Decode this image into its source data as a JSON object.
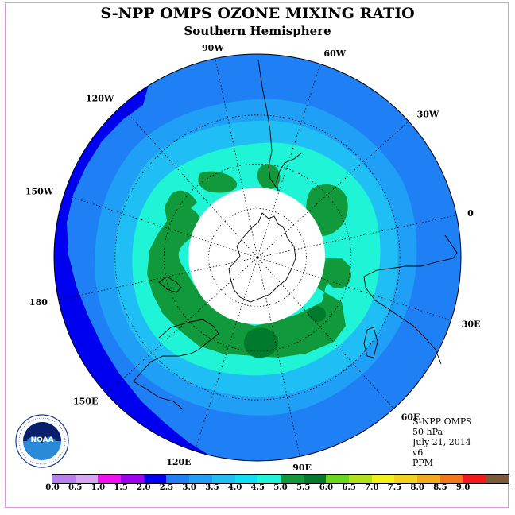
{
  "title": "S-NPP OMPS OZONE MIXING RATIO",
  "subtitle": "Southern Hemisphere",
  "longitude_labels": [
    "90W",
    "60W",
    "30W",
    "0",
    "30E",
    "60E",
    "90E",
    "120E",
    "150E",
    "180",
    "150W",
    "120W"
  ],
  "info": {
    "instrument": "S-NPP OMPS",
    "level": "50 hPa",
    "date": "July 21, 2014",
    "version": "v6",
    "units": "PPM"
  },
  "logo": {
    "text": "NOAA",
    "icon": "noaa-logo-icon"
  },
  "colorbar": {
    "colors": [
      "#b77fef",
      "#d7a6f2",
      "#f20ff2",
      "#a000f0",
      "#0000f0",
      "#1f7ff5",
      "#1f9ff5",
      "#1fbff5",
      "#0fdff5",
      "#1ff5d6",
      "#119a3c",
      "#007a2d",
      "#6ad91a",
      "#b0e21a",
      "#f2f21a",
      "#f2d21a",
      "#f2aa1a",
      "#f2781a",
      "#f21a1a",
      "#7a5a3a"
    ],
    "tick_labels": [
      "0.0",
      "0.5",
      "1.0",
      "1.5",
      "2.0",
      "2.5",
      "3.0",
      "3.5",
      "4.0",
      "4.5",
      "5.0",
      "5.5",
      "6.0",
      "6.5",
      "7.0",
      "7.5",
      "8.0",
      "8.5",
      "9.0"
    ]
  },
  "map_colors": {
    "ring_2_0": "#0000f0",
    "ring_2_5": "#1f7ff5",
    "ring_3_0": "#1f9ff5",
    "ring_3_5": "#1fbff5",
    "ring_4_0": "#1ff5d6",
    "ring_4_5": "#119a3c",
    "ring_5_0": "#007a2d",
    "no_data": "#ffffff"
  }
}
